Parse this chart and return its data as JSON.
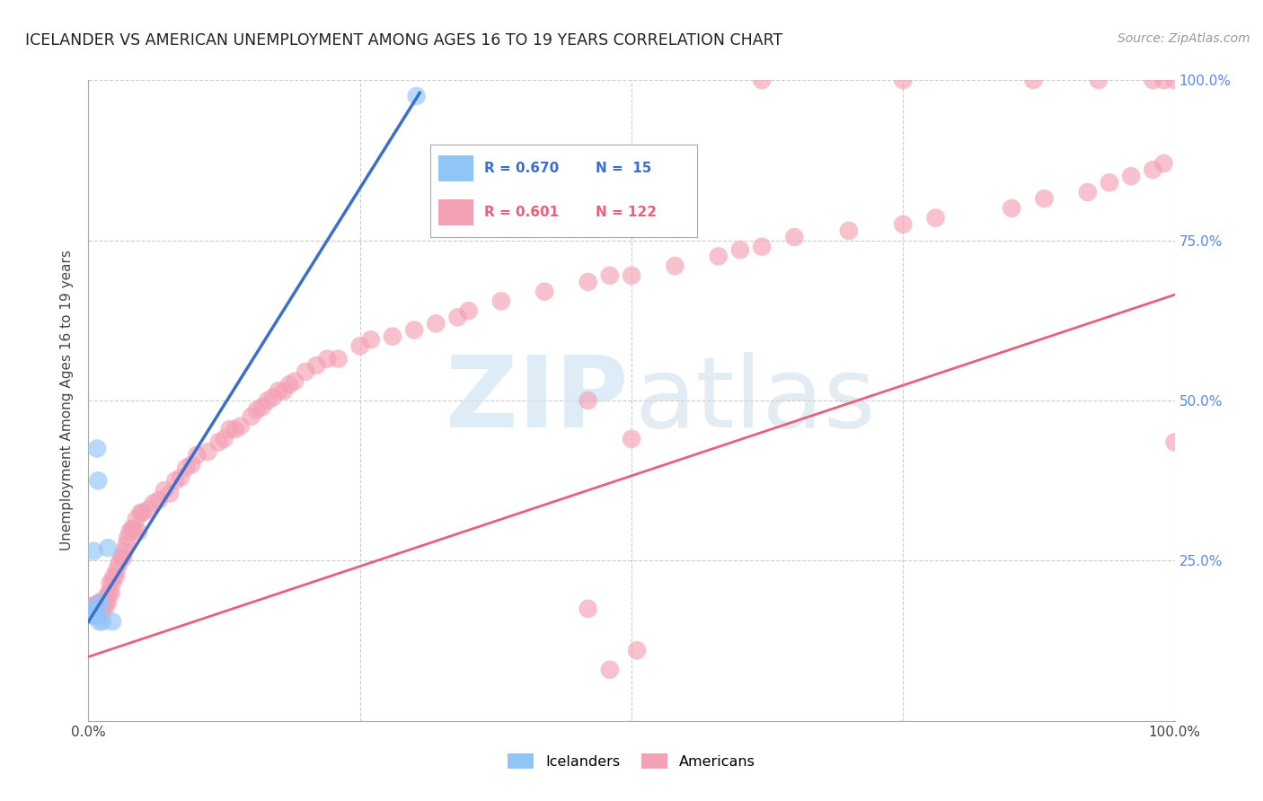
{
  "title": "ICELANDER VS AMERICAN UNEMPLOYMENT AMONG AGES 16 TO 19 YEARS CORRELATION CHART",
  "source": "Source: ZipAtlas.com",
  "ylabel": "Unemployment Among Ages 16 to 19 years",
  "xlim": [
    0,
    1
  ],
  "ylim": [
    0,
    1
  ],
  "blue_color": "#92C5F7",
  "blue_color_edge": "#92C5F7",
  "pink_color": "#F4A0B5",
  "pink_color_edge": "#F4A0B5",
  "blue_line_color": "#3B6FCC",
  "pink_line_color": "#E8607A",
  "blue_r": 0.67,
  "blue_n": 15,
  "pink_r": 0.601,
  "pink_n": 122,
  "blue_line_start_x": 0.0,
  "blue_line_start_y": 0.155,
  "blue_line_end_x": 0.305,
  "blue_line_end_y": 0.98,
  "pink_line_start_x": 0.0,
  "pink_line_start_y": 0.1,
  "pink_line_end_x": 1.0,
  "pink_line_end_y": 0.665,
  "blue_points_x": [
    0.003,
    0.004,
    0.005,
    0.005,
    0.006,
    0.007,
    0.007,
    0.008,
    0.009,
    0.01,
    0.011,
    0.013,
    0.018,
    0.022,
    0.302
  ],
  "blue_points_y": [
    0.165,
    0.175,
    0.165,
    0.265,
    0.165,
    0.165,
    0.175,
    0.425,
    0.375,
    0.155,
    0.185,
    0.155,
    0.27,
    0.155,
    0.975
  ],
  "pink_points_x": [
    0.003,
    0.003,
    0.004,
    0.004,
    0.005,
    0.005,
    0.005,
    0.006,
    0.006,
    0.006,
    0.007,
    0.007,
    0.007,
    0.008,
    0.008,
    0.008,
    0.009,
    0.009,
    0.01,
    0.01,
    0.01,
    0.011,
    0.011,
    0.012,
    0.012,
    0.013,
    0.013,
    0.014,
    0.015,
    0.015,
    0.016,
    0.017,
    0.018,
    0.019,
    0.02,
    0.021,
    0.022,
    0.023,
    0.025,
    0.026,
    0.028,
    0.03,
    0.032,
    0.033,
    0.035,
    0.036,
    0.038,
    0.04,
    0.042,
    0.044,
    0.046,
    0.048,
    0.05,
    0.055,
    0.06,
    0.065,
    0.07,
    0.075,
    0.08,
    0.085,
    0.09,
    0.095,
    0.1,
    0.11,
    0.12,
    0.125,
    0.13,
    0.135,
    0.14,
    0.15,
    0.155,
    0.16,
    0.165,
    0.17,
    0.175,
    0.18,
    0.185,
    0.19,
    0.2,
    0.21,
    0.22,
    0.23,
    0.25,
    0.26,
    0.28,
    0.3,
    0.32,
    0.34,
    0.35,
    0.38,
    0.42,
    0.46,
    0.48,
    0.5,
    0.54,
    0.58,
    0.6,
    0.62,
    0.65,
    0.7,
    0.75,
    0.78,
    0.85,
    0.88,
    0.92,
    0.94,
    0.96,
    0.98,
    0.99,
    1.0,
    0.62,
    0.75,
    0.87,
    0.93,
    0.98,
    0.99,
    1.0,
    0.48,
    0.505,
    0.5,
    0.46,
    0.46
  ],
  "pink_points_y": [
    0.175,
    0.165,
    0.175,
    0.18,
    0.175,
    0.165,
    0.175,
    0.175,
    0.165,
    0.18,
    0.175,
    0.165,
    0.18,
    0.175,
    0.165,
    0.175,
    0.175,
    0.18,
    0.175,
    0.165,
    0.185,
    0.175,
    0.18,
    0.175,
    0.185,
    0.185,
    0.175,
    0.185,
    0.175,
    0.185,
    0.185,
    0.195,
    0.185,
    0.2,
    0.215,
    0.2,
    0.215,
    0.225,
    0.225,
    0.235,
    0.245,
    0.255,
    0.255,
    0.265,
    0.275,
    0.285,
    0.295,
    0.3,
    0.3,
    0.315,
    0.295,
    0.325,
    0.325,
    0.33,
    0.34,
    0.345,
    0.36,
    0.355,
    0.375,
    0.38,
    0.395,
    0.4,
    0.415,
    0.42,
    0.435,
    0.44,
    0.455,
    0.455,
    0.46,
    0.475,
    0.485,
    0.49,
    0.5,
    0.505,
    0.515,
    0.515,
    0.525,
    0.53,
    0.545,
    0.555,
    0.565,
    0.565,
    0.585,
    0.595,
    0.6,
    0.61,
    0.62,
    0.63,
    0.64,
    0.655,
    0.67,
    0.685,
    0.695,
    0.695,
    0.71,
    0.725,
    0.735,
    0.74,
    0.755,
    0.765,
    0.775,
    0.785,
    0.8,
    0.815,
    0.825,
    0.84,
    0.85,
    0.86,
    0.87,
    1.0,
    1.0,
    1.0,
    1.0,
    1.0,
    1.0,
    1.0,
    0.435,
    0.08,
    0.11,
    0.44,
    0.175,
    0.5
  ]
}
